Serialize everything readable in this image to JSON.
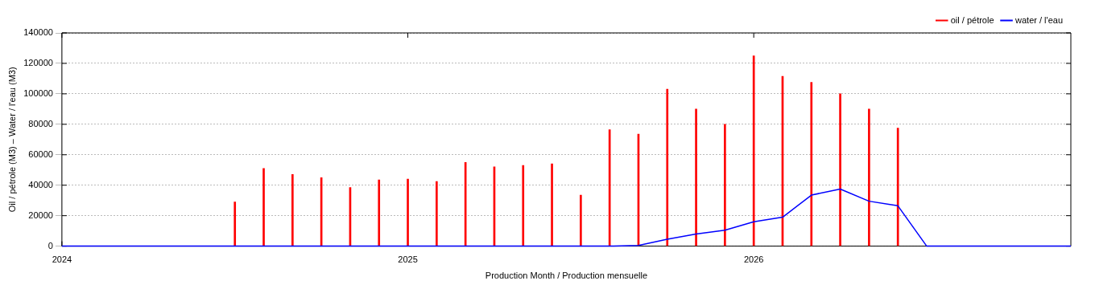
{
  "chart_data": {
    "type": "bar",
    "xlabel": "Production Month / Production mensuelle",
    "ylabel": "Oil / pétrole (M3) – Water / l'eau (M3)",
    "xlim": [
      "2024-01",
      "2026-12"
    ],
    "xticks": [
      "2024",
      "2025",
      "2026"
    ],
    "ylim": [
      0,
      140000
    ],
    "yticks": [
      0,
      20000,
      40000,
      60000,
      80000,
      100000,
      120000,
      140000
    ],
    "grid": "y",
    "legend": "top right",
    "series": [
      {
        "name": "oil / pétrole",
        "color": "#ff0000",
        "x": [
          "2024-07",
          "2024-08",
          "2024-09",
          "2024-10",
          "2024-11",
          "2024-12",
          "2025-01",
          "2025-02",
          "2025-03",
          "2025-04",
          "2025-05",
          "2025-06",
          "2025-07",
          "2025-08",
          "2025-09",
          "2025-10",
          "2025-11",
          "2025-12",
          "2026-01",
          "2026-02",
          "2026-03",
          "2026-04",
          "2026-05",
          "2026-06"
        ],
        "values": [
          29000,
          51000,
          47000,
          45000,
          38500,
          43500,
          44000,
          42500,
          55000,
          52000,
          53000,
          54000,
          33500,
          76500,
          73500,
          103000,
          90000,
          80000,
          125000,
          111500,
          107500,
          100000,
          90000,
          77500
        ]
      },
      {
        "name": "water / l'eau",
        "type": "line",
        "color": "#0000ff",
        "x": [
          "2024-01",
          "2025-08",
          "2025-09",
          "2025-10",
          "2025-11",
          "2025-12",
          "2026-01",
          "2026-02",
          "2026-03",
          "2026-04",
          "2026-05",
          "2026-06",
          "2026-07",
          "2026-12"
        ],
        "values": [
          0,
          0,
          500,
          4500,
          8000,
          10500,
          16000,
          19000,
          33500,
          37500,
          29500,
          26500,
          0,
          0
        ]
      }
    ]
  }
}
